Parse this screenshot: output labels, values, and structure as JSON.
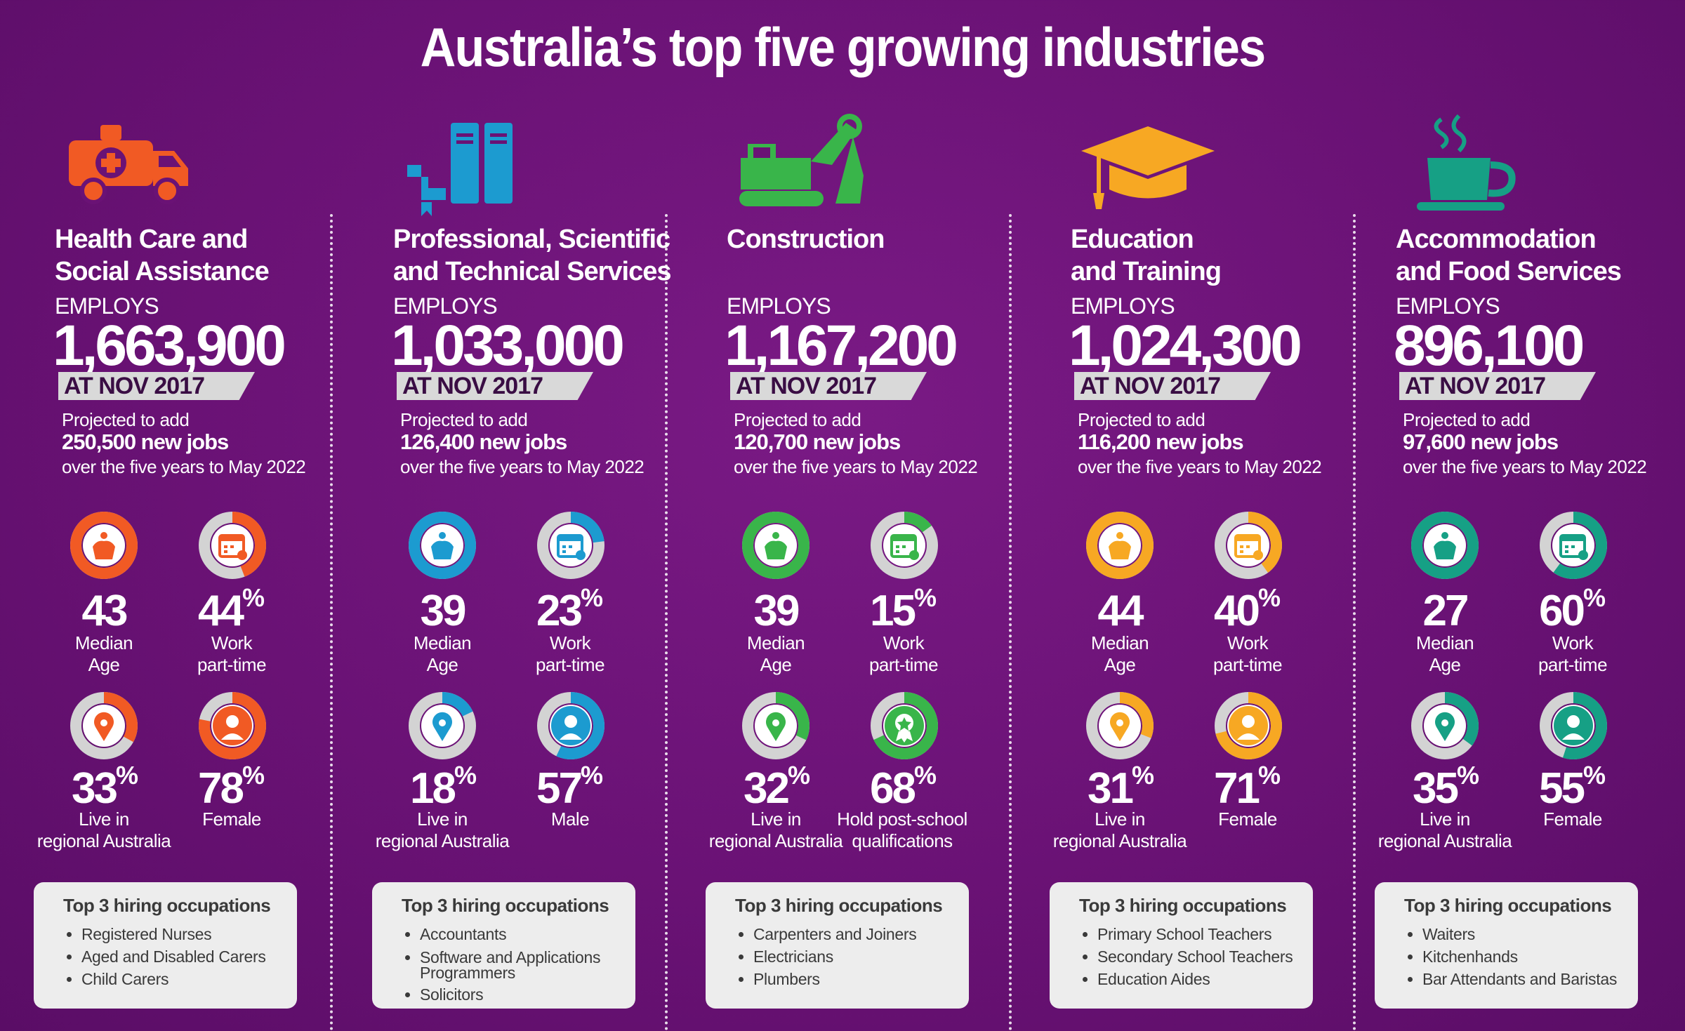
{
  "title": "Australia’s top five growing industries",
  "labels": {
    "employs": "EMPLOYS",
    "at_date": "AT NOV 2017",
    "projected_to_add": "Projected to add",
    "over_period": "over the five years to May 2022",
    "top3_title": "Top 3 hiring occupations",
    "median": "Median",
    "age": "Age",
    "work": "Work",
    "part_time": "part-time",
    "live_in": "Live in",
    "regional": "regional Australia"
  },
  "industries": [
    {
      "name_line1": "Health Care and",
      "name_line2": "Social Assistance",
      "employs": "1,663,900",
      "new_jobs": "250,500 new jobs",
      "median_age": "43",
      "part_time": "44",
      "regional": "33",
      "gender_pct": "78",
      "gender_label": "Female",
      "gender_label2": "",
      "color": "#f15a24",
      "icon": "ambulance-icon",
      "part_time_fraction": 0.44,
      "regional_fraction": 0.33,
      "gender_fraction": 0.78,
      "occupations": [
        "Registered Nurses",
        "Aged and Disabled Carers",
        "Child Carers"
      ]
    },
    {
      "name_line1": "Professional, Scientific",
      "name_line2": "and Technical Services",
      "employs": "1,033,000",
      "new_jobs": "126,400 new jobs",
      "median_age": "39",
      "part_time": "23",
      "regional": "18",
      "gender_pct": "57",
      "gender_label": "Male",
      "gender_label2": "",
      "color": "#1c9bd0",
      "icon": "books-icon",
      "part_time_fraction": 0.23,
      "regional_fraction": 0.18,
      "gender_fraction": 0.57,
      "occupations": [
        "Accountants",
        "Software and Applications Programmers",
        "Solicitors"
      ]
    },
    {
      "name_line1": "Construction",
      "name_line2": "",
      "employs": "1,167,200",
      "new_jobs": "120,700 new jobs",
      "median_age": "39",
      "part_time": "15",
      "regional": "32",
      "gender_pct": "68",
      "gender_label": "Hold post-school",
      "gender_label2": "qualifications",
      "color": "#39b54a",
      "icon": "excavator-icon",
      "part_time_fraction": 0.15,
      "regional_fraction": 0.32,
      "gender_fraction": 0.68,
      "occupations": [
        "Carpenters and Joiners",
        "Electricians",
        "Plumbers"
      ]
    },
    {
      "name_line1": "Education",
      "name_line2": "and Training",
      "employs": "1,024,300",
      "new_jobs": "116,200 new jobs",
      "median_age": "44",
      "part_time": "40",
      "regional": "31",
      "gender_pct": "71",
      "gender_label": "Female",
      "gender_label2": "",
      "color": "#f7a823",
      "icon": "graduation-cap-icon",
      "part_time_fraction": 0.4,
      "regional_fraction": 0.31,
      "gender_fraction": 0.71,
      "occupations": [
        "Primary School Teachers",
        "Secondary School Teachers",
        "Education Aides"
      ]
    },
    {
      "name_line1": "Accommodation",
      "name_line2": "and Food Services",
      "employs": "896,100",
      "new_jobs": "97,600 new jobs",
      "median_age": "27",
      "part_time": "60",
      "regional": "35",
      "gender_pct": "55",
      "gender_label": "Female",
      "gender_label2": "",
      "color": "#16a085",
      "icon": "coffee-cup-icon",
      "part_time_fraction": 0.6,
      "regional_fraction": 0.35,
      "gender_fraction": 0.55,
      "occupations": [
        "Waiters",
        "Kitchenhands",
        "Bar Attendants and Baristas"
      ]
    }
  ]
}
